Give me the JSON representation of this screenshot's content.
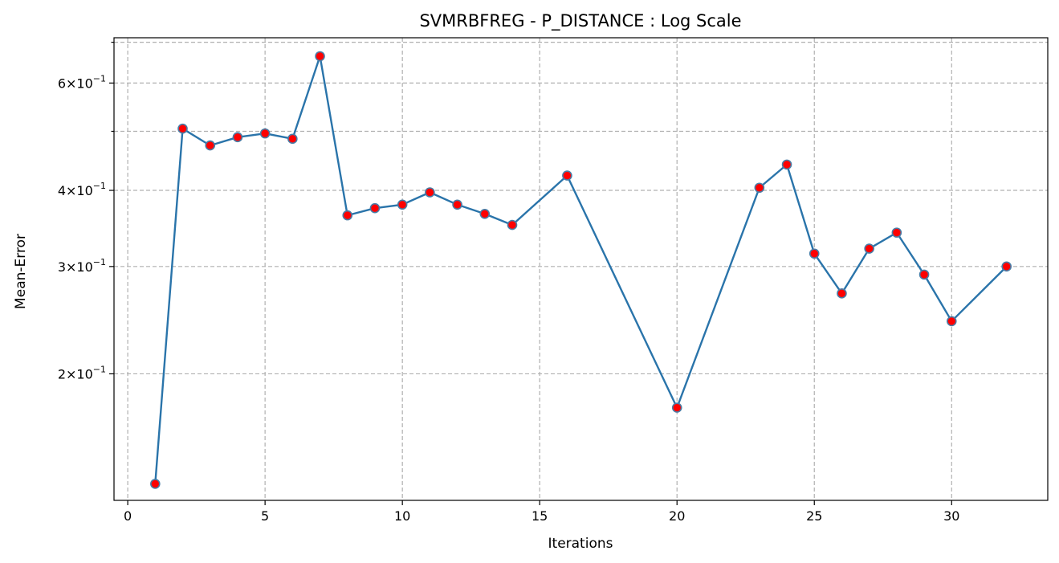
{
  "chart_data": {
    "type": "line",
    "title": "SVMRBFREG - P_DISTANCE : Log Scale",
    "xlabel": "Iterations",
    "ylabel": "Mean-Error",
    "yscale": "log",
    "grid": true,
    "xlim": [
      -0.5,
      33.5
    ],
    "ylim": [
      0.124,
      0.712
    ],
    "xticks": [
      0,
      5,
      10,
      15,
      20,
      25,
      30
    ],
    "yticks": [
      {
        "value": 0.6,
        "mantissa": "6",
        "exponent": "−1"
      },
      {
        "value": 0.4,
        "mantissa": "4",
        "exponent": "−1"
      },
      {
        "value": 0.3,
        "mantissa": "3",
        "exponent": "−1"
      },
      {
        "value": 0.2,
        "mantissa": "2",
        "exponent": "−1"
      }
    ],
    "minor_yticks": [
      0.7,
      0.5
    ],
    "colors": {
      "line": "#2a74aa",
      "marker_face": "#ff0000",
      "marker_edge": "#4a7ca5"
    },
    "series": [
      {
        "x": [
          1,
          2,
          3,
          4,
          5,
          6,
          7,
          8,
          9,
          10,
          11,
          12,
          13,
          14,
          16,
          20,
          23,
          24,
          25,
          26,
          27,
          28,
          29,
          30,
          32
        ],
        "y": [
          0.132,
          0.505,
          0.474,
          0.489,
          0.496,
          0.486,
          0.664,
          0.364,
          0.374,
          0.379,
          0.397,
          0.379,
          0.366,
          0.351,
          0.423,
          0.176,
          0.404,
          0.441,
          0.315,
          0.271,
          0.321,
          0.341,
          0.291,
          0.244,
          0.3
        ]
      }
    ]
  }
}
